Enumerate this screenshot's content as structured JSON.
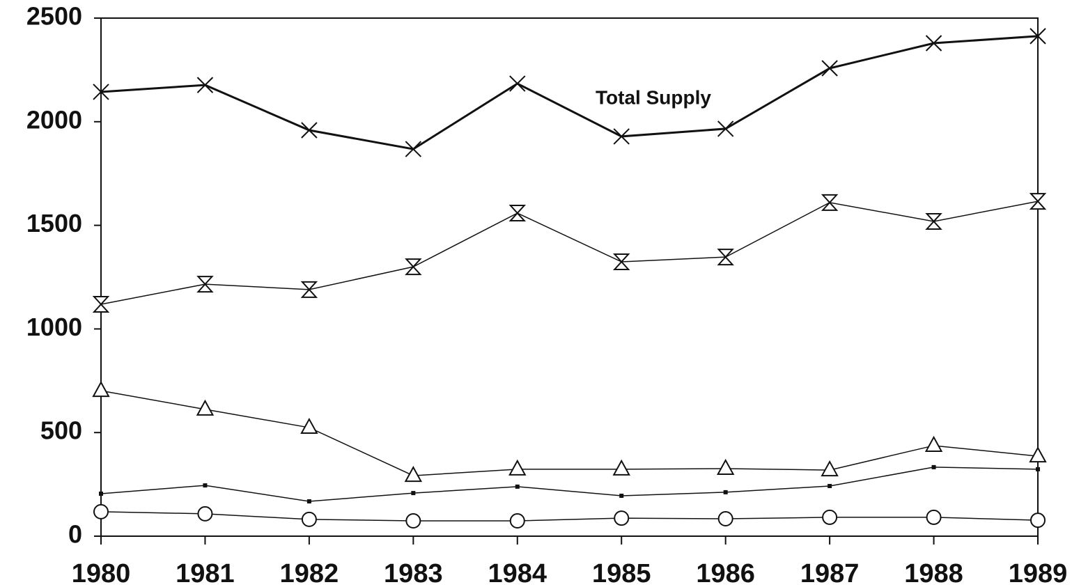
{
  "chart_data": {
    "type": "line",
    "x": [
      1980,
      1981,
      1982,
      1983,
      1984,
      1985,
      1986,
      1987,
      1988,
      1989
    ],
    "xlim": [
      1980,
      1989
    ],
    "xticks": [
      1980,
      1981,
      1982,
      1983,
      1984,
      1985,
      1986,
      1987,
      1988,
      1989
    ],
    "ylim": [
      0,
      2500
    ],
    "yticks": [
      0,
      500,
      1000,
      1500,
      2000,
      2500
    ],
    "series": [
      {
        "name": "Total Supply",
        "color": "#111111",
        "marker": "x",
        "values": [
          2144,
          2177,
          1959,
          1868,
          2184,
          1929,
          1966,
          2258,
          2379,
          2413
        ]
      },
      {
        "color": "#111111",
        "marker": "hourglass",
        "values": [
          1119,
          1216,
          1190,
          1300,
          1559,
          1324,
          1347,
          1610,
          1519,
          1616
        ]
      },
      {
        "color": "#111111",
        "marker": "triangle",
        "values": [
          702,
          612,
          524,
          292,
          323,
          323,
          326,
          319,
          437,
          386
        ]
      },
      {
        "color": "#111111",
        "marker": "square",
        "values": [
          205,
          245,
          168,
          208,
          239,
          195,
          212,
          242,
          333,
          323
        ]
      },
      {
        "color": "#111111",
        "marker": "circle",
        "values": [
          118,
          108,
          81,
          74,
          74,
          87,
          84,
          91,
          91,
          77
        ]
      }
    ]
  }
}
